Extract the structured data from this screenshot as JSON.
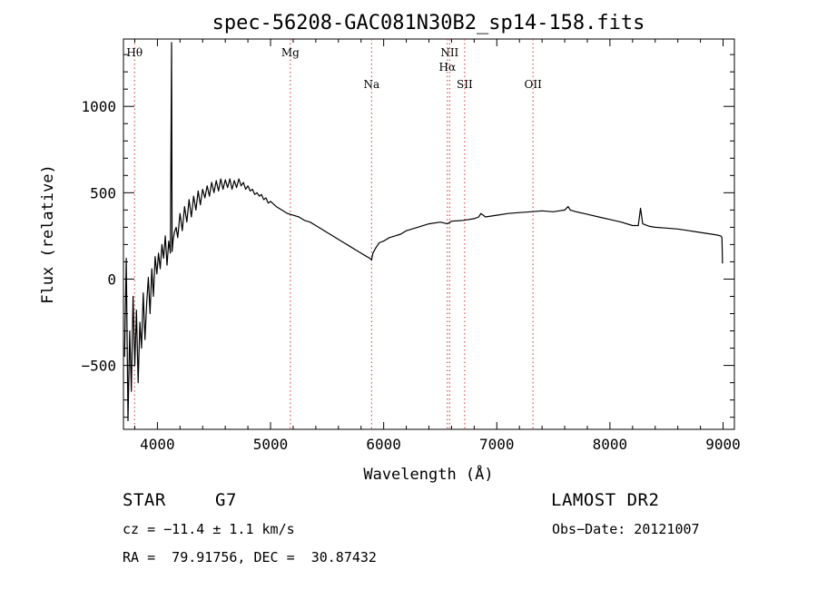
{
  "chart_data": {
    "type": "line",
    "title": "spec-56208-GAC081N30B2_sp14-158.fits",
    "xlabel": "Wavelength (Å)",
    "ylabel": "Flux (relative)",
    "xlim": [
      3700,
      9100
    ],
    "ylim": [
      -870,
      1390
    ],
    "x_ticks": [
      4000,
      5000,
      6000,
      7000,
      8000,
      9000
    ],
    "x_tick_labels": [
      "4000",
      "5000",
      "6000",
      "7000",
      "8000",
      "9000"
    ],
    "y_ticks": [
      -500,
      0,
      500,
      1000
    ],
    "y_tick_labels": [
      "−500",
      "0",
      "500",
      "1000"
    ],
    "grid": false,
    "line_color": "#000000",
    "marker_color": "#e03030",
    "spectral_lines": [
      {
        "label": "Hθ",
        "x": 3798,
        "row": 0
      },
      {
        "label": "Mg",
        "x": 5175,
        "row": 0
      },
      {
        "label": "Na",
        "x": 5893,
        "row": 2
      },
      {
        "label": "NII",
        "x": 6583,
        "row": 0
      },
      {
        "label": "Hα",
        "x": 6563,
        "row": 1
      },
      {
        "label": "SII",
        "x": 6716,
        "row": 2
      },
      {
        "label": "OII",
        "x": 7320,
        "row": 2
      }
    ],
    "series": [
      {
        "x": [
          3710,
          3725,
          3740,
          3755,
          3770,
          3785,
          3800,
          3815,
          3830,
          3845,
          3860,
          3875,
          3890,
          3905,
          3920,
          3935,
          3950,
          3965,
          3980,
          3995,
          4010,
          4025,
          4040,
          4055,
          4070,
          4085,
          4100,
          4115,
          4125,
          4130,
          4140,
          4150,
          4165,
          4180,
          4200,
          4220,
          4240,
          4260,
          4280,
          4300,
          4320,
          4340,
          4360,
          4380,
          4400,
          4420,
          4440,
          4460,
          4480,
          4500,
          4520,
          4540,
          4560,
          4580,
          4600,
          4620,
          4640,
          4660,
          4680,
          4700,
          4720,
          4740,
          4760,
          4780,
          4800,
          4820,
          4840,
          4860,
          4880,
          4900,
          4920,
          4940,
          4960,
          4980,
          5000,
          5050,
          5100,
          5150,
          5200,
          5250,
          5300,
          5350,
          5400,
          5450,
          5500,
          5550,
          5600,
          5650,
          5700,
          5750,
          5800,
          5850,
          5880,
          5893,
          5905,
          5930,
          5960,
          6000,
          6050,
          6100,
          6150,
          6200,
          6300,
          6400,
          6500,
          6563,
          6600,
          6700,
          6800,
          6840,
          6860,
          6900,
          7000,
          7100,
          7200,
          7300,
          7400,
          7500,
          7550,
          7600,
          7630,
          7650,
          7700,
          7800,
          7900,
          8000,
          8100,
          8200,
          8250,
          8270,
          8290,
          8350,
          8400,
          8500,
          8600,
          8700,
          8800,
          8900,
          8950,
          8980,
          8990,
          8995
        ],
        "y": [
          -450,
          120,
          -820,
          -300,
          -650,
          -100,
          -500,
          -180,
          -600,
          -250,
          -400,
          -80,
          -350,
          -150,
          10,
          -200,
          60,
          -100,
          130,
          30,
          150,
          60,
          200,
          120,
          250,
          80,
          220,
          150,
          1370,
          160,
          230,
          270,
          300,
          240,
          380,
          280,
          420,
          330,
          460,
          360,
          480,
          400,
          510,
          430,
          520,
          470,
          540,
          480,
          560,
          500,
          570,
          510,
          580,
          520,
          575,
          530,
          580,
          520,
          570,
          530,
          580,
          540,
          560,
          520,
          540,
          510,
          520,
          490,
          500,
          480,
          490,
          460,
          470,
          440,
          450,
          420,
          400,
          380,
          370,
          360,
          340,
          330,
          310,
          290,
          270,
          250,
          230,
          210,
          190,
          170,
          150,
          130,
          120,
          110,
          150,
          180,
          210,
          220,
          240,
          250,
          260,
          280,
          300,
          320,
          330,
          320,
          335,
          340,
          350,
          360,
          380,
          360,
          370,
          380,
          385,
          390,
          395,
          390,
          395,
          400,
          420,
          400,
          390,
          375,
          360,
          345,
          330,
          310,
          310,
          410,
          320,
          305,
          300,
          295,
          290,
          280,
          270,
          260,
          255,
          250,
          240,
          90
        ]
      }
    ]
  },
  "info": {
    "object_type": "STAR",
    "subclass": "G7",
    "survey": "LAMOST DR2",
    "cz": "cz = −11.4 ± 1.1 km/s",
    "obs_date": "Obs−Date: 20121007",
    "coords": "RA =  79.91756, DEC =  30.87432"
  }
}
